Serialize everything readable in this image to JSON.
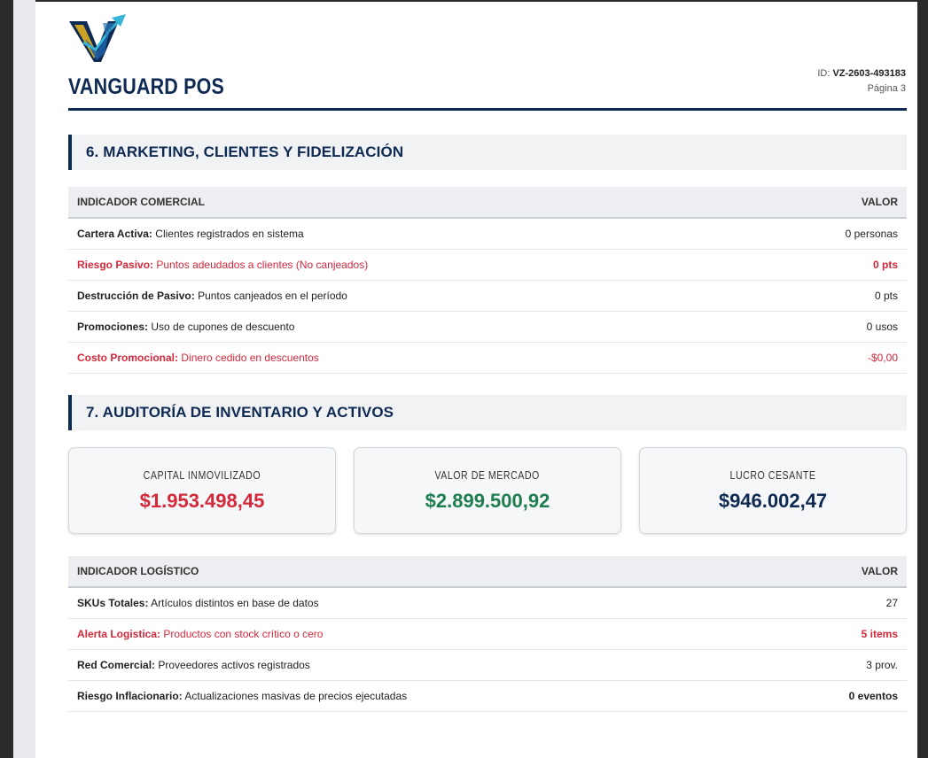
{
  "header": {
    "brand": "VANGUARD POS",
    "id_label": "ID:",
    "id_value": "VZ-2603-493183",
    "page_label": "Página 3"
  },
  "colors": {
    "navy": "#0f2a52",
    "alert_red": "#d4283b",
    "market_green": "#1e7e4f",
    "logo_gold": "#c9a227",
    "logo_cyan": "#35b6d8"
  },
  "section6": {
    "title": "6. MARKETING, CLIENTES Y FIDELIZACIÓN",
    "col_indicator": "INDICADOR COMERCIAL",
    "col_value": "VALOR",
    "rows": [
      {
        "label": "Cartera Activa:",
        "desc": "Clientes registrados en sistema",
        "value": "0 personas",
        "alert": false,
        "value_bold": false
      },
      {
        "label": "Riesgo Pasivo:",
        "desc": "Puntos adeudados a clientes (No canjeados)",
        "value": "0 pts",
        "alert": true,
        "value_bold": true
      },
      {
        "label": "Destrucción de Pasivo:",
        "desc": "Puntos canjeados en el período",
        "value": "0 pts",
        "alert": false,
        "value_bold": false
      },
      {
        "label": "Promociones:",
        "desc": "Uso de cupones de descuento",
        "value": "0 usos",
        "alert": false,
        "value_bold": false
      },
      {
        "label": "Costo Promocional:",
        "desc": "Dinero cedido en descuentos",
        "value": "-$0,00",
        "alert": true,
        "value_bold": false
      }
    ]
  },
  "section7": {
    "title": "7. AUDITORÍA DE INVENTARIO Y ACTIVOS",
    "cards": [
      {
        "label": "CAPITAL INMOVILIZADO",
        "value": "$1.953.498,45",
        "color": "#d4283b"
      },
      {
        "label": "VALOR DE MERCADO",
        "value": "$2.899.500,92",
        "color": "#1e7e4f"
      },
      {
        "label": "LUCRO CESANTE",
        "value": "$946.002,47",
        "color": "#0f2a52"
      }
    ],
    "col_indicator": "INDICADOR LOGÍSTICO",
    "col_value": "VALOR",
    "rows": [
      {
        "label": "SKUs Totales:",
        "desc": "Artículos distintos en base de datos",
        "value": "27",
        "alert": false,
        "value_bold": false
      },
      {
        "label": "Alerta Logistica:",
        "desc": "Productos con stock crítico o cero",
        "value": "5 items",
        "alert": true,
        "value_bold": true
      },
      {
        "label": "Red Comercial:",
        "desc": "Proveedores activos registrados",
        "value": "3 prov.",
        "alert": false,
        "value_bold": false
      },
      {
        "label": "Riesgo Inflacionario:",
        "desc": "Actualizaciones masivas de precios ejecutadas",
        "value": "0 eventos",
        "alert": false,
        "value_bold": true
      }
    ]
  }
}
